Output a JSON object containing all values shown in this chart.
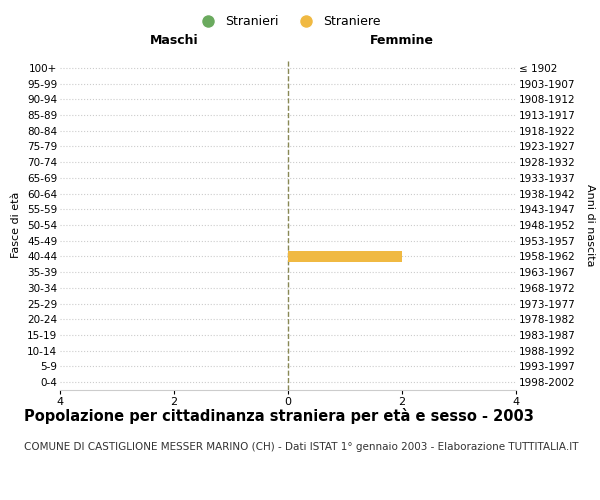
{
  "age_groups": [
    "0-4",
    "5-9",
    "10-14",
    "15-19",
    "20-24",
    "25-29",
    "30-34",
    "35-39",
    "40-44",
    "45-49",
    "50-54",
    "55-59",
    "60-64",
    "65-69",
    "70-74",
    "75-79",
    "80-84",
    "85-89",
    "90-94",
    "95-99",
    "100+"
  ],
  "birth_years": [
    "1998-2002",
    "1993-1997",
    "1988-1992",
    "1983-1987",
    "1978-1982",
    "1973-1977",
    "1968-1972",
    "1963-1967",
    "1958-1962",
    "1953-1957",
    "1948-1952",
    "1943-1947",
    "1938-1942",
    "1933-1937",
    "1928-1932",
    "1923-1927",
    "1918-1922",
    "1913-1917",
    "1908-1912",
    "1903-1907",
    "≤ 1902"
  ],
  "maschi_values": [
    0,
    0,
    0,
    0,
    0,
    0,
    0,
    0,
    0,
    0,
    0,
    0,
    0,
    0,
    0,
    0,
    0,
    0,
    0,
    0,
    0
  ],
  "femmine_values": [
    0,
    0,
    0,
    0,
    0,
    0,
    0,
    0,
    2,
    0,
    0,
    0,
    0,
    0,
    0,
    0,
    0,
    0,
    0,
    0,
    0
  ],
  "maschi_color": "#6aaa5e",
  "femmine_color": "#f0b942",
  "maschi_label": "Stranieri",
  "femmine_label": "Straniere",
  "xlabel_left": "Maschi",
  "xlabel_right": "Femmine",
  "ylabel_left": "Fasce di età",
  "ylabel_right": "Anni di nascita",
  "xlim": 4,
  "xticks": [
    -4,
    -2,
    0,
    2,
    4
  ],
  "xticklabels": [
    "4",
    "2",
    "0",
    "2",
    "4"
  ],
  "title": "Popolazione per cittadinanza straniera per età e sesso - 2003",
  "subtitle": "COMUNE DI CASTIGLIONE MESSER MARINO (CH) - Dati ISTAT 1° gennaio 2003 - Elaborazione TUTTITALIA.IT",
  "title_fontsize": 10.5,
  "subtitle_fontsize": 7.5,
  "background_color": "#ffffff",
  "grid_color": "#cccccc",
  "center_line_color": "#888855",
  "bar_height": 0.75
}
